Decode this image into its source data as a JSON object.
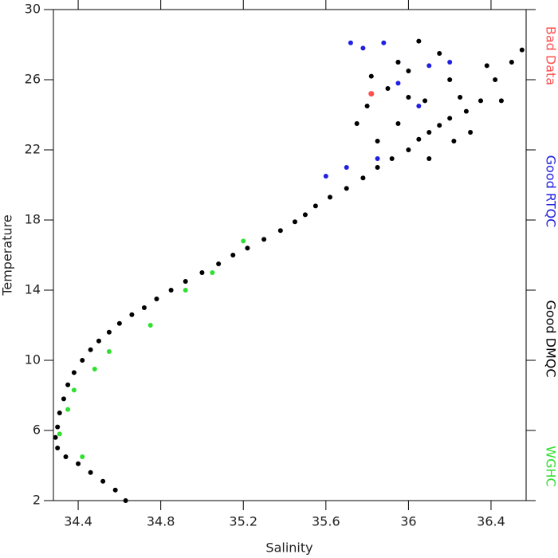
{
  "chart_data": {
    "type": "scatter",
    "x_label": "Salinity",
    "y_label": "Temperature",
    "xlim": [
      34.28,
      36.57
    ],
    "ylim": [
      2,
      30
    ],
    "xticks": [
      34.4,
      34.8,
      35.2,
      35.6,
      36.0,
      36.4
    ],
    "yticks": [
      2,
      6,
      10,
      14,
      18,
      22,
      26,
      30
    ],
    "series": [
      {
        "name": "Bad Data",
        "color": "#ff5050",
        "x": [
          35.82
        ],
        "values": [
          25.2
        ]
      },
      {
        "name": "Good RTQC",
        "color": "#2020e0",
        "x": [
          35.72,
          35.78,
          35.88,
          35.95,
          36.2,
          35.85,
          35.6,
          36.05,
          35.95,
          36.1,
          35.7
        ],
        "values": [
          28.1,
          27.8,
          28.1,
          27.0,
          27.0,
          21.5,
          20.5,
          24.5,
          25.8,
          26.8,
          21.0
        ]
      },
      {
        "name": "Good DMQC",
        "color": "#000000",
        "x": [
          34.63,
          34.58,
          34.52,
          34.46,
          34.4,
          34.34,
          34.3,
          34.29,
          34.3,
          34.31,
          34.33,
          34.35,
          34.38,
          34.42,
          34.46,
          34.5,
          34.55,
          34.6,
          34.66,
          34.72,
          34.78,
          34.85,
          34.92,
          35.0,
          35.08,
          35.15,
          35.22,
          35.3,
          35.38,
          35.45,
          35.5,
          35.55,
          35.62,
          35.7,
          35.78,
          35.85,
          35.92,
          36.0,
          36.05,
          36.1,
          36.15,
          36.2,
          36.28,
          36.35,
          36.42,
          36.5,
          36.55,
          35.8,
          35.9,
          36.0,
          36.05,
          36.2,
          35.85,
          36.1,
          36.3,
          36.45,
          35.95,
          36.15,
          35.75,
          36.25,
          35.95,
          36.08,
          35.82,
          36.38,
          36.0,
          36.22
        ],
        "values": [
          2.0,
          2.6,
          3.1,
          3.6,
          4.1,
          4.5,
          5.0,
          5.6,
          6.2,
          7.0,
          7.8,
          8.6,
          9.3,
          10.0,
          10.6,
          11.1,
          11.6,
          12.1,
          12.6,
          13.0,
          13.5,
          14.0,
          14.5,
          15.0,
          15.5,
          16.0,
          16.4,
          16.9,
          17.4,
          17.9,
          18.3,
          18.8,
          19.3,
          19.8,
          20.4,
          21.0,
          21.5,
          22.0,
          22.6,
          23.0,
          23.4,
          23.8,
          24.2,
          24.8,
          26.0,
          27.0,
          27.7,
          24.5,
          25.5,
          26.5,
          28.2,
          26.0,
          22.5,
          21.5,
          23.0,
          24.8,
          27.0,
          27.5,
          23.5,
          25.0,
          23.5,
          24.8,
          26.2,
          26.8,
          25.0,
          22.5
        ]
      },
      {
        "name": "WGHC",
        "color": "#30e030",
        "x": [
          34.35,
          34.38,
          34.48,
          34.55,
          34.75,
          34.92,
          35.05,
          35.2,
          34.42,
          34.31
        ],
        "values": [
          7.2,
          8.3,
          9.5,
          10.5,
          12.0,
          14.0,
          15.0,
          16.8,
          4.5,
          5.8
        ]
      }
    ]
  }
}
